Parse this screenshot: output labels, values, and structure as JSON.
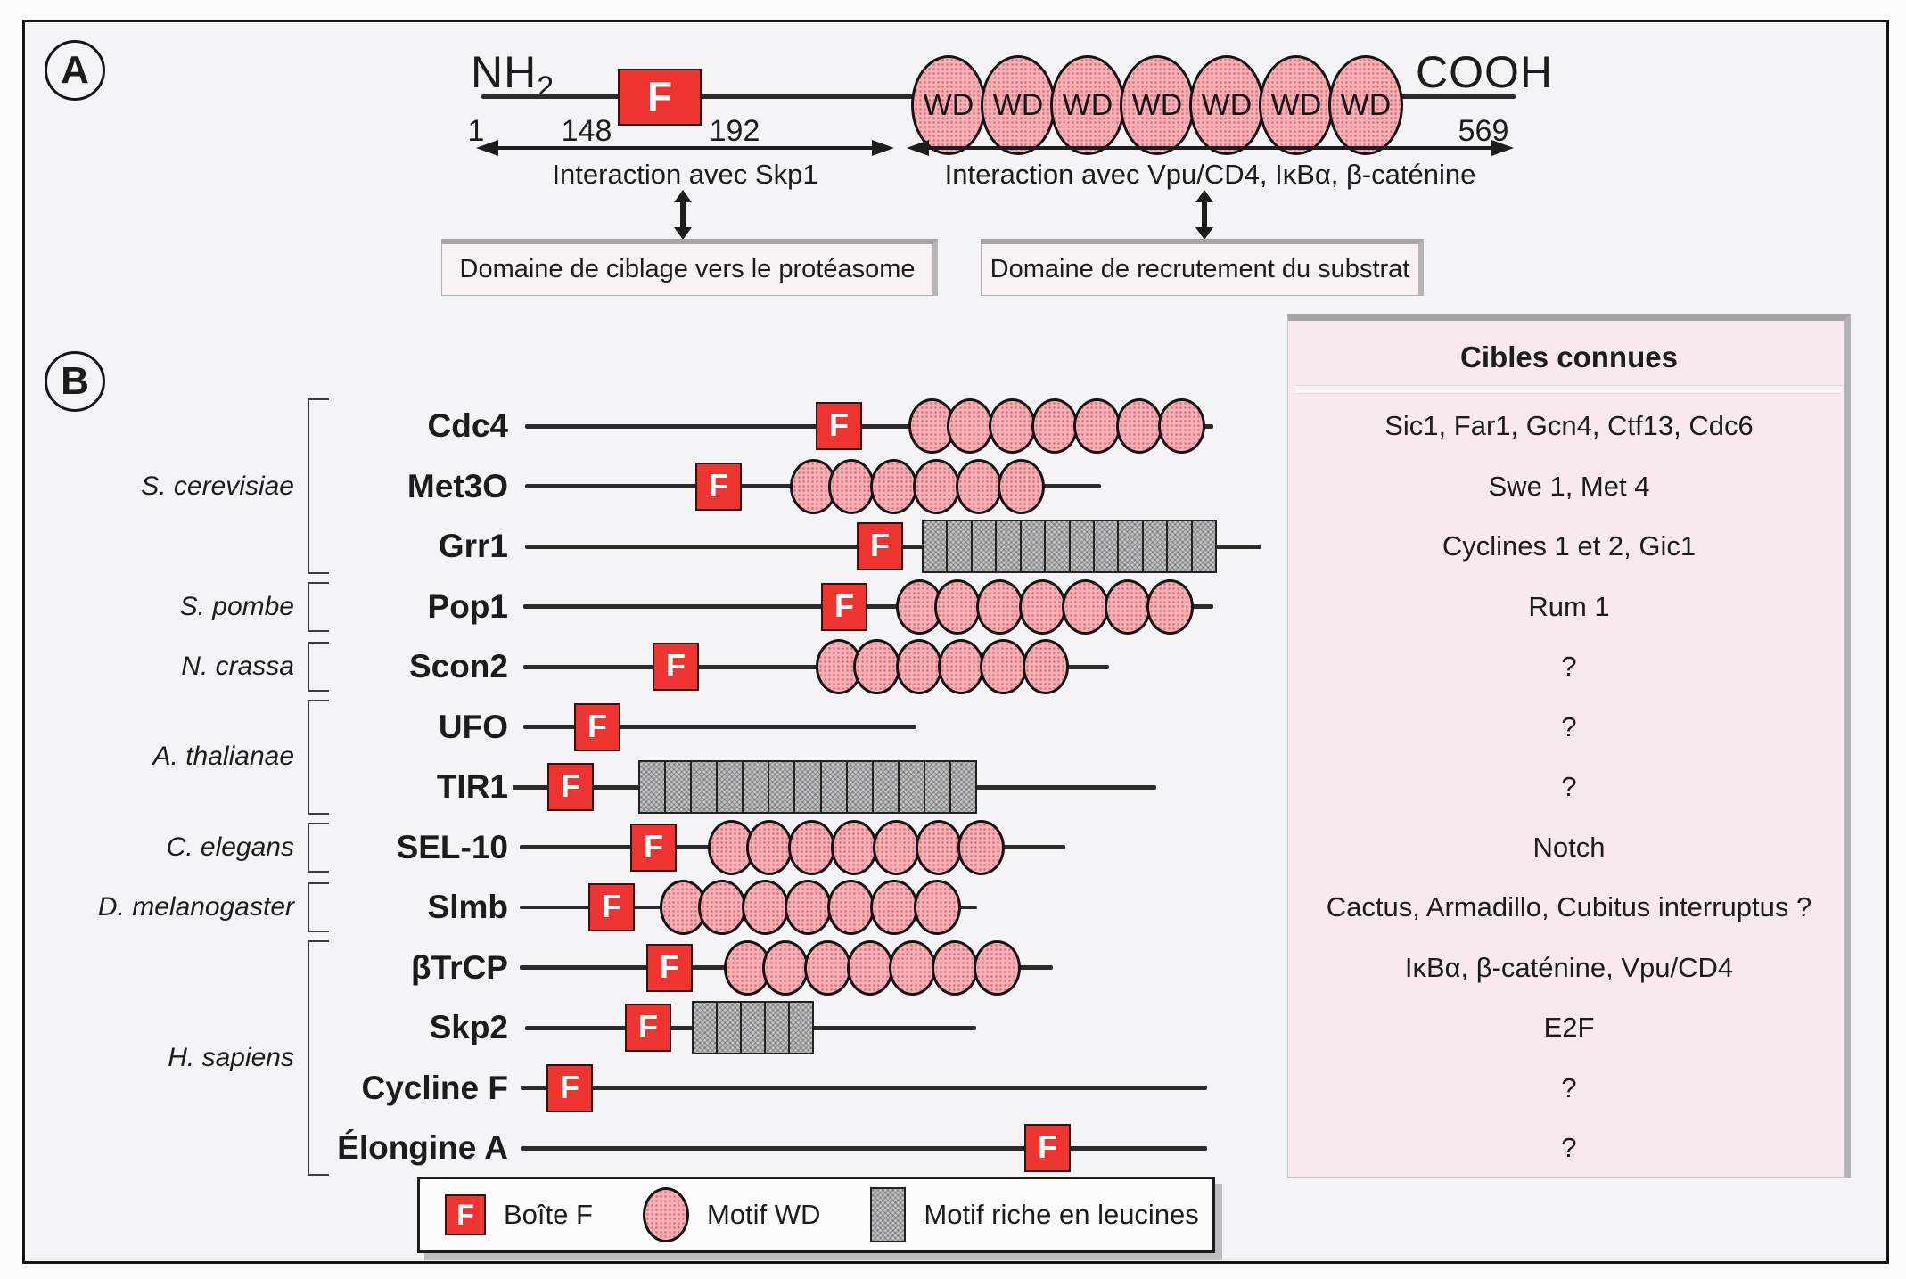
{
  "panelA": {
    "marker": "A",
    "nterm": "NH",
    "nterm_sub": "2",
    "cterm": "COOH",
    "fbox_label": "F",
    "wd_label": "WD",
    "wd_count": 7,
    "positions": {
      "start": "1",
      "f_start": "148",
      "f_end": "192",
      "end": "569"
    },
    "arrow_left_label": "Interaction avec Skp1",
    "arrow_right_label": "Interaction avec Vpu/CD4, IκBα, β-caténine",
    "box_left": "Domaine de ciblage vers le protéasome",
    "box_right": "Domaine de recrutement du substrat"
  },
  "panelB": {
    "marker": "B",
    "targets_header": "Cibles connues",
    "species": [
      {
        "name": "S. cerevisiae",
        "from": 0,
        "to": 2
      },
      {
        "name": "S. pombe",
        "from": 3,
        "to": 3
      },
      {
        "name": "N. crassa",
        "from": 4,
        "to": 4
      },
      {
        "name": "A. thalianae",
        "from": 5,
        "to": 6
      },
      {
        "name": "C. elegans",
        "from": 7,
        "to": 7
      },
      {
        "name": "D. melanogaster",
        "from": 8,
        "to": 8
      },
      {
        "name": "H. sapiens",
        "from": 9,
        "to": 12
      }
    ],
    "rows": [
      {
        "label": "Cdc4",
        "line": [
          589,
          1361
        ],
        "thin": false,
        "f": 941,
        "motif": {
          "type": "wd",
          "count": 7,
          "span": [
            1019,
            1352
          ]
        },
        "target": "Sic1, Far1, Gcn4, Ctf13, Cdc6"
      },
      {
        "label": "Met3O",
        "line": [
          589,
          1235
        ],
        "thin": false,
        "f": 806,
        "motif": {
          "type": "wd",
          "count": 6,
          "span": [
            886,
            1172
          ]
        },
        "target": "Swe 1, Met 4"
      },
      {
        "label": "Grr1",
        "line": [
          589,
          1415
        ],
        "thin": false,
        "f": 987,
        "motif": {
          "type": "lrr",
          "count": 12,
          "span": [
            1034,
            1365
          ]
        },
        "target": "Cyclines 1 et 2, Gic1"
      },
      {
        "label": "Pop1",
        "line": [
          587,
          1361
        ],
        "thin": false,
        "f": 947,
        "motif": {
          "type": "wd",
          "count": 7,
          "span": [
            1005,
            1339
          ]
        },
        "target": "Rum 1"
      },
      {
        "label": "Scon2",
        "line": [
          587,
          1244
        ],
        "thin": false,
        "f": 758,
        "motif": {
          "type": "wd",
          "count": 6,
          "span": [
            915,
            1199
          ]
        },
        "target": "?"
      },
      {
        "label": "UFO",
        "line": [
          587,
          1028
        ],
        "thin": false,
        "f": 670,
        "motif": null,
        "target": "?"
      },
      {
        "label": "TIR1",
        "line": [
          575,
          1297
        ],
        "thin": false,
        "f": 640,
        "motif": {
          "type": "lrr",
          "count": 13,
          "span": [
            716,
            1096
          ]
        },
        "target": "?"
      },
      {
        "label": "SEL-10",
        "line": [
          583,
          1195
        ],
        "thin": false,
        "f": 733,
        "motif": {
          "type": "wd",
          "count": 7,
          "span": [
            794,
            1127
          ]
        },
        "target": "Notch"
      },
      {
        "label": "Slmb",
        "line": [
          583,
          1096
        ],
        "thin": true,
        "f": 686,
        "motif": {
          "type": "wd",
          "count": 7,
          "span": [
            740,
            1078
          ]
        },
        "target": "Cactus, Armadillo, Cubitus interruptus ?"
      },
      {
        "label": "βTrCP",
        "line": [
          583,
          1181
        ],
        "thin": false,
        "f": 751,
        "motif": {
          "type": "wd",
          "count": 7,
          "span": [
            812,
            1145
          ]
        },
        "target": "IκBα, β-caténine, Vpu/CD4"
      },
      {
        "label": "Skp2",
        "line": [
          589,
          1095
        ],
        "thin": false,
        "f": 727,
        "motif": {
          "type": "lrr",
          "count": 5,
          "span": [
            776,
            913
          ]
        },
        "target": "E2F"
      },
      {
        "label": "Cycline F",
        "line": [
          584,
          1354
        ],
        "thin": false,
        "f": 639,
        "motif": null,
        "target": "?"
      },
      {
        "label": "Élongine A",
        "line": [
          584,
          1354
        ],
        "thin": false,
        "f": 1175,
        "motif": null,
        "target": "?"
      }
    ]
  },
  "legend": {
    "f_char": "F",
    "items": [
      {
        "label": "Boîte F"
      },
      {
        "label": "Motif WD"
      },
      {
        "label": "Motif riche en leucines"
      }
    ]
  },
  "colors": {
    "fbox_red": "#ee3430",
    "wd_pink": "#f5b1b7",
    "lrr_grey": "#c6c6c8",
    "panel_pink": "#f7e9ed",
    "line_dark": "#2b2b2b"
  }
}
